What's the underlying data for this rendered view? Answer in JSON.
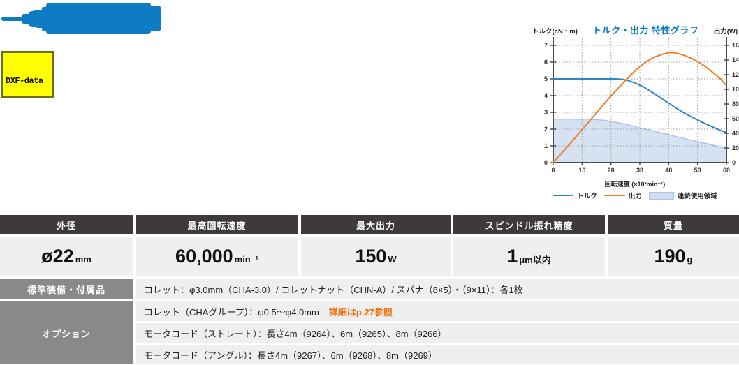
{
  "product_image": {
    "name": "spindle-silhouette",
    "color": "#0e7cc4"
  },
  "dxf_button": {
    "label": "DXF-data",
    "bg": "#ffff00",
    "border": "#6e6e1e"
  },
  "chart": {
    "title": "トルク・出力 特性グラフ",
    "title_color": "#0b76c0",
    "left_axis_label": "トルク(cN・m)",
    "right_axis_label": "出力(W)",
    "x_axis_label": "回転速度 (×10³min⁻¹)",
    "legend": [
      {
        "label": "トルク",
        "type": "line",
        "color": "#2e86c4"
      },
      {
        "label": "出力",
        "type": "line",
        "color": "#ef7d2c"
      },
      {
        "label": "連続使用領域",
        "type": "area",
        "color": "#cfddef"
      }
    ]
  },
  "chart_data": {
    "type": "line",
    "title": "トルク・出力 特性グラフ",
    "xlabel": "回転速度 (×10³min⁻¹)",
    "x_axis": {
      "min": 0,
      "max": 60,
      "ticks": [
        0,
        10,
        20,
        30,
        40,
        50,
        60
      ]
    },
    "left_y_axis": {
      "label": "トルク(cN・m)",
      "min": 0,
      "max": 7,
      "ticks": [
        0,
        1,
        2,
        3,
        4,
        5,
        6,
        7
      ]
    },
    "right_y_axis": {
      "label": "出力(W)",
      "min": 0,
      "max": 160,
      "ticks": [
        0,
        20,
        40,
        60,
        80,
        100,
        120,
        140,
        160
      ]
    },
    "grid": true,
    "legend_position": "bottom",
    "series": [
      {
        "name": "トルク",
        "axis": "left",
        "kind": "line",
        "color": "#2e86c4",
        "x": [
          0,
          5,
          10,
          15,
          20,
          22,
          24,
          26,
          28,
          30,
          32,
          35,
          38,
          40,
          42,
          45,
          48,
          50,
          52,
          55,
          58,
          60
        ],
        "y": [
          5,
          5,
          5,
          5,
          5,
          5,
          4.97,
          4.9,
          4.78,
          4.62,
          4.45,
          4.12,
          3.78,
          3.55,
          3.32,
          3.0,
          2.72,
          2.55,
          2.38,
          2.15,
          1.92,
          1.8
        ]
      },
      {
        "name": "出力",
        "axis": "right",
        "kind": "line",
        "color": "#ef7d2c",
        "x": [
          0,
          5,
          10,
          15,
          20,
          25,
          28,
          30,
          32,
          35,
          38,
          40,
          42,
          45,
          48,
          50,
          52,
          55,
          58,
          60
        ],
        "y": [
          0,
          22,
          45,
          68,
          91,
          112,
          124,
          131,
          137,
          144,
          148,
          150,
          150,
          147,
          142,
          138,
          133,
          124,
          114,
          105
        ]
      },
      {
        "name": "連続使用領域",
        "axis": "left",
        "kind": "area",
        "color": "#cfddef",
        "edge": "#a9c4e5",
        "x": [
          0,
          5,
          10,
          14,
          18,
          22,
          26,
          30,
          34,
          38,
          42,
          46,
          50,
          54,
          58,
          60
        ],
        "y": [
          2.6,
          2.6,
          2.6,
          2.58,
          2.52,
          2.4,
          2.25,
          2.08,
          1.92,
          1.75,
          1.58,
          1.42,
          1.25,
          1.1,
          0.92,
          0.85
        ]
      }
    ]
  },
  "spec_table": {
    "columns": [
      {
        "header": "外径",
        "value": "ø22",
        "unit": "mm"
      },
      {
        "header": "最高回転速度",
        "value": "60,000",
        "unit": "min⁻¹"
      },
      {
        "header": "最大出力",
        "value": "150",
        "unit": "W"
      },
      {
        "header": "スピンドル振れ精度",
        "value": "1",
        "unit": "μm以内"
      },
      {
        "header": "質量",
        "value": "190",
        "unit": "g"
      }
    ]
  },
  "detail_rows": [
    {
      "label": "標準装備・付属品",
      "lines": [
        {
          "text": "コレット：φ3.0mm（CHA-3.0）/ コレットナット（CHN-A）/ スパナ（8×5）・（9×11）：各1枚"
        }
      ]
    },
    {
      "label": "オプション",
      "lines": [
        {
          "text": "コレット（CHAグループ）：φ0.5～φ4.0mm",
          "highlight": "詳細はp.27参照"
        },
        {
          "text": "モータコード（ストレート）：長さ4m（9264）、6m（9265）、8m（9266）"
        },
        {
          "text": "モータコード（アングル）：長さ4m（9267）、6m（9268）、8m（9269）"
        }
      ]
    }
  ],
  "colors": {
    "table_header_bg": "#3e3a39",
    "row_label_bg": "#898989",
    "row_bg": "#efefef",
    "highlight_orange": "#ec6c00",
    "torque_blue": "#2e86c4",
    "output_orange": "#ef7d2c",
    "area_fill": "#cfddef"
  }
}
